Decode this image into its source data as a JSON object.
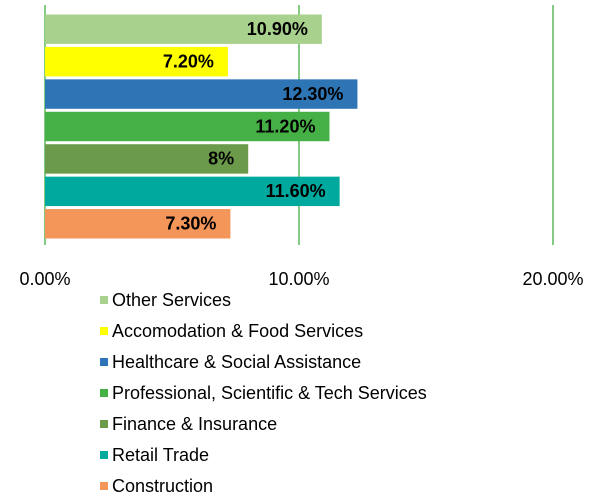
{
  "chart_data": {
    "type": "bar",
    "orientation": "horizontal",
    "series": [
      {
        "name": "Other Services",
        "color": "#a9d18e",
        "values": [
          10.9
        ],
        "value_labels": [
          "10.90%"
        ]
      },
      {
        "name": "Accomodation & Food Services",
        "color": "#ffff00",
        "values": [
          7.2
        ],
        "value_labels": [
          "7.20%"
        ]
      },
      {
        "name": "Healthcare & Social Assistance",
        "color": "#2e75b6",
        "values": [
          12.3
        ],
        "value_labels": [
          "12.30%"
        ]
      },
      {
        "name": "Professional, Scientific & Tech Services",
        "color": "#45b045",
        "values": [
          11.2
        ],
        "value_labels": [
          "11.20%"
        ]
      },
      {
        "name": "Finance & Insurance",
        "color": "#6a9a4a",
        "values": [
          8
        ],
        "value_labels": [
          "8%"
        ]
      },
      {
        "name": "Retail Trade",
        "color": "#00a99d",
        "values": [
          11.6
        ],
        "value_labels": [
          "11.60%"
        ]
      },
      {
        "name": "Construction",
        "color": "#f4955a",
        "values": [
          7.3
        ],
        "value_labels": [
          "7.30%"
        ]
      }
    ],
    "xlim": [
      0,
      20
    ],
    "xticks": [
      {
        "value": 0,
        "label": "0.00%"
      },
      {
        "value": 10,
        "label": "10.00%"
      },
      {
        "value": 20,
        "label": "20.00%"
      }
    ],
    "grid": true,
    "grid_color": "#5cb85c",
    "legend": "bottom"
  }
}
